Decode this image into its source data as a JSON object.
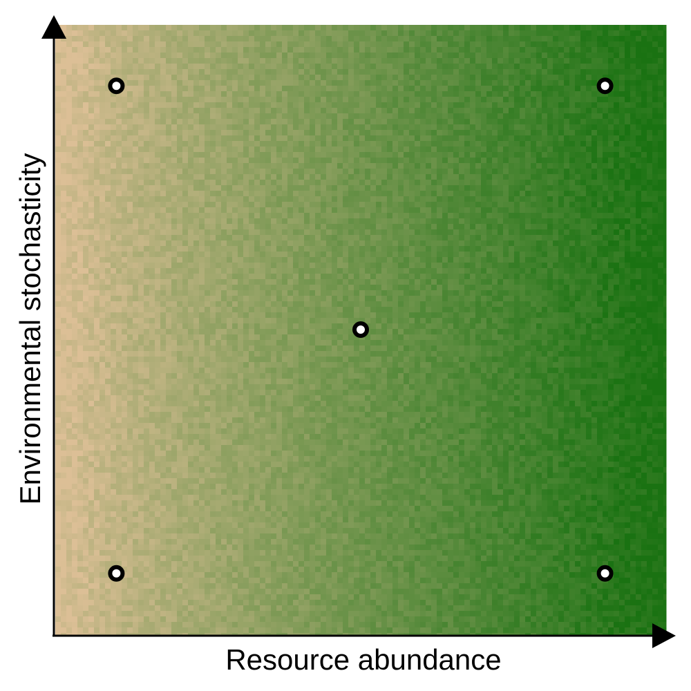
{
  "chart_data": {
    "type": "heatmap",
    "title": "",
    "xlabel": "Resource abundance",
    "ylabel": "Environmental stochasticity",
    "xlim": [
      0,
      1
    ],
    "ylim": [
      0,
      1
    ],
    "grid": false,
    "legend": "none",
    "color_scale": {
      "low": "#dcbf96",
      "high": "#1a7212",
      "gradient_direction": "increases with resource abundance",
      "noise": true
    },
    "points": [
      {
        "x": 0.1,
        "y": 0.9
      },
      {
        "x": 0.9,
        "y": 0.9
      },
      {
        "x": 0.5,
        "y": 0.5
      },
      {
        "x": 0.1,
        "y": 0.1
      },
      {
        "x": 0.9,
        "y": 0.1
      }
    ],
    "marker": {
      "fill": "#ffffff",
      "stroke": "#000000"
    }
  }
}
